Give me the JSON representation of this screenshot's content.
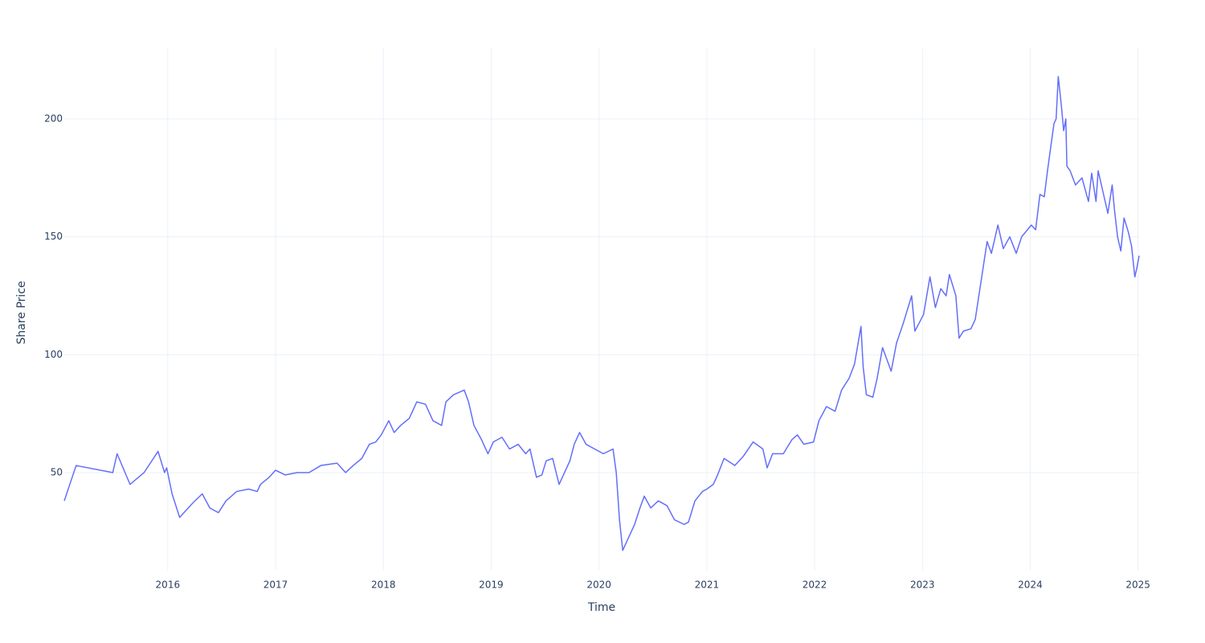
{
  "chart_data": {
    "type": "line",
    "xlabel": "Time",
    "ylabel": "Share Price",
    "color": "#636efa",
    "grid": true,
    "x": [
      2015.04,
      2015.15,
      2015.49,
      2015.53,
      2015.65,
      2015.78,
      2015.91,
      2015.97,
      2015.99,
      2016.04,
      2016.11,
      2016.23,
      2016.32,
      2016.39,
      2016.47,
      2016.54,
      2016.64,
      2016.75,
      2016.83,
      2016.86,
      2016.94,
      2017.0,
      2017.09,
      2017.2,
      2017.31,
      2017.42,
      2017.57,
      2017.65,
      2017.72,
      2017.8,
      2017.87,
      2017.93,
      2017.98,
      2018.05,
      2018.1,
      2018.16,
      2018.24,
      2018.31,
      2018.39,
      2018.46,
      2018.54,
      2018.58,
      2018.65,
      2018.75,
      2018.79,
      2018.84,
      2018.91,
      2018.97,
      2019.02,
      2019.1,
      2019.17,
      2019.25,
      2019.32,
      2019.36,
      2019.42,
      2019.47,
      2019.51,
      2019.57,
      2019.63,
      2019.73,
      2019.77,
      2019.82,
      2019.88,
      2019.96,
      2020.04,
      2020.13,
      2020.16,
      2020.19,
      2020.22,
      2020.27,
      2020.33,
      2020.38,
      2020.42,
      2020.48,
      2020.55,
      2020.63,
      2020.7,
      2020.79,
      2020.83,
      2020.89,
      2020.96,
      2021.0,
      2021.06,
      2021.1,
      2021.16,
      2021.26,
      2021.34,
      2021.43,
      2021.52,
      2021.56,
      2021.61,
      2021.71,
      2021.79,
      2021.84,
      2021.9,
      2021.99,
      2022.04,
      2022.11,
      2022.19,
      2022.25,
      2022.32,
      2022.37,
      2022.43,
      2022.45,
      2022.48,
      2022.54,
      2022.58,
      2022.63,
      2022.71,
      2022.76,
      2022.82,
      2022.9,
      2022.93,
      2023.01,
      2023.07,
      2023.12,
      2023.17,
      2023.22,
      2023.25,
      2023.31,
      2023.34,
      2023.38,
      2023.45,
      2023.49,
      2023.54,
      2023.6,
      2023.64,
      2023.7,
      2023.75,
      2023.81,
      2023.87,
      2023.92,
      2024.01,
      2024.05,
      2024.09,
      2024.13,
      2024.16,
      2024.22,
      2024.24,
      2024.26,
      2024.29,
      2024.31,
      2024.33,
      2024.34,
      2024.37,
      2024.42,
      2024.48,
      2024.54,
      2024.57,
      2024.61,
      2024.63,
      2024.68,
      2024.72,
      2024.76,
      2024.78,
      2024.81,
      2024.84,
      2024.87,
      2024.91,
      2024.94,
      2024.97,
      2024.99,
      2025.01
    ],
    "values": [
      38,
      53,
      50,
      58,
      45,
      50,
      59,
      50,
      52,
      41,
      31,
      37,
      41,
      35,
      33,
      38,
      42,
      43,
      42,
      45,
      48,
      51,
      49,
      50,
      50,
      53,
      54,
      50,
      53,
      56,
      62,
      63,
      66,
      72,
      67,
      70,
      73,
      80,
      79,
      72,
      70,
      80,
      83,
      85,
      80,
      70,
      64,
      58,
      63,
      65,
      60,
      62,
      58,
      60,
      48,
      49,
      55,
      56,
      45,
      55,
      62,
      67,
      62,
      60,
      58,
      60,
      50,
      30,
      17,
      22,
      28,
      35,
      40,
      35,
      38,
      36,
      30,
      28,
      29,
      38,
      42,
      43,
      45,
      49,
      56,
      53,
      57,
      63,
      60,
      52,
      58,
      58,
      64,
      66,
      62,
      63,
      72,
      78,
      76,
      85,
      90,
      96,
      112,
      95,
      83,
      82,
      90,
      103,
      93,
      105,
      113,
      125,
      110,
      117,
      133,
      120,
      128,
      125,
      134,
      125,
      107,
      110,
      111,
      115,
      130,
      148,
      143,
      155,
      145,
      150,
      143,
      150,
      155,
      153,
      168,
      167,
      178,
      198,
      200,
      218,
      205,
      195,
      200,
      180,
      178,
      172,
      175,
      165,
      177,
      165,
      178,
      168,
      160,
      172,
      162,
      150,
      144,
      158,
      152,
      146,
      133,
      137,
      142
    ],
    "xlim": [
      2015.04,
      2025.01
    ],
    "xticks": [
      2016,
      2017,
      2018,
      2019,
      2020,
      2021,
      2022,
      2023,
      2024,
      2025
    ],
    "ylim": [
      8.4,
      230
    ],
    "yticks": [
      50,
      100,
      150,
      200
    ]
  }
}
